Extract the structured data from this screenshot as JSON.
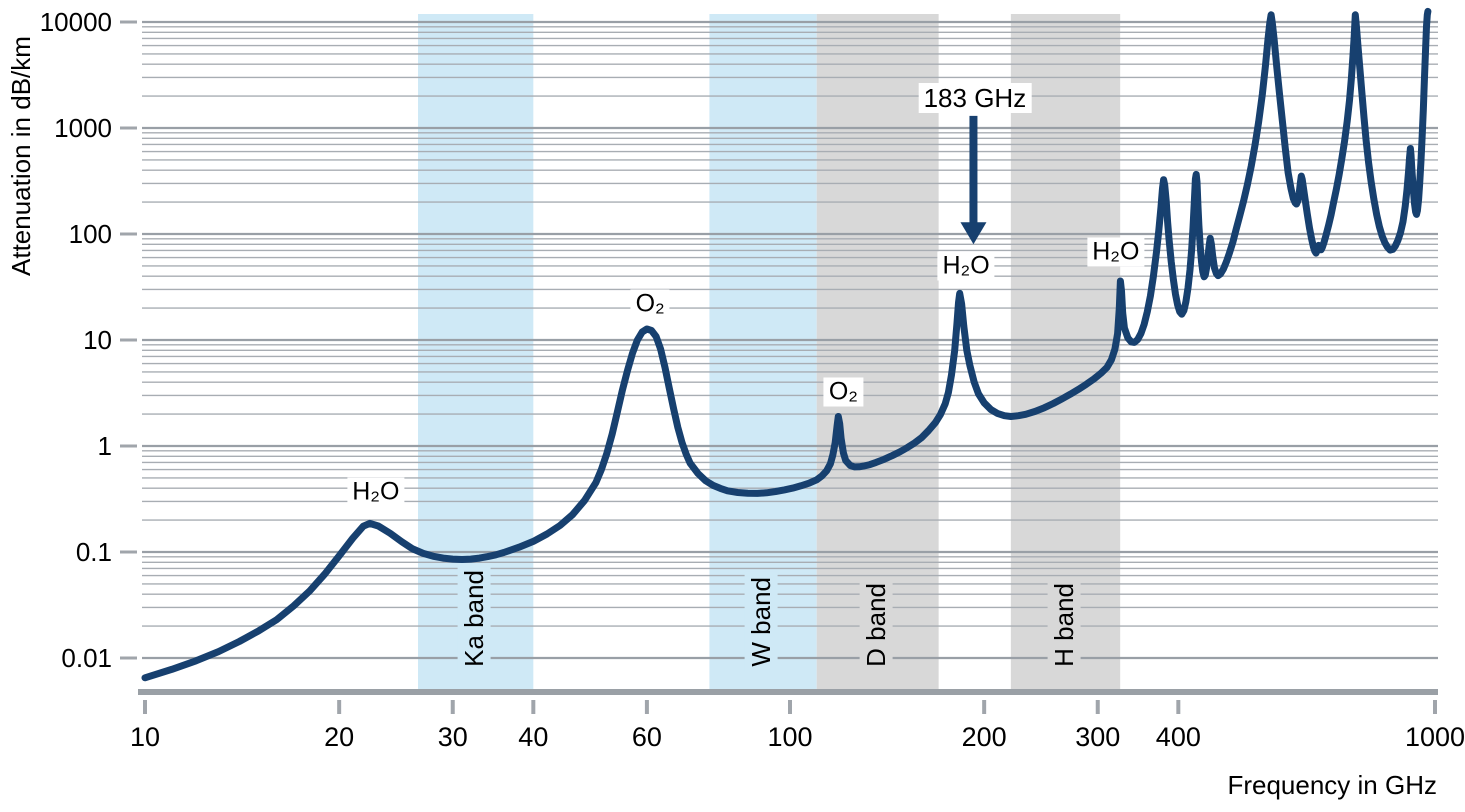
{
  "chart_data": {
    "type": "line",
    "title": "",
    "xlabel": "Frequency in GHz",
    "ylabel": "Attenuation in dB/km",
    "x_scale": "log",
    "y_scale": "log",
    "xlim": [
      10,
      1000
    ],
    "ylim": [
      0.0047,
      12500
    ],
    "x_ticks": [
      10,
      20,
      30,
      40,
      60,
      100,
      200,
      300,
      400,
      1000
    ],
    "y_ticks": [
      10000,
      1000,
      100,
      10,
      1,
      0.1,
      0.01
    ],
    "grid": "horizontal log major and minor lines, no vertical gridlines",
    "legend": "none",
    "colors": {
      "curve": "#17406F",
      "band_blue": "#cfe9f6",
      "band_gray": "#d8d8d8",
      "grid_major": "#999fa6",
      "grid_minor": "#a8adb3",
      "axis_line": "#9aa0a6",
      "tick": "#a0a5ab",
      "text": "#000000"
    },
    "bands": [
      {
        "label": "Ka band",
        "from_ghz": 26.5,
        "to_ghz": 40,
        "color": "#cfe9f6"
      },
      {
        "label": "W band",
        "from_ghz": 75,
        "to_ghz": 110,
        "color": "#cfe9f6"
      },
      {
        "label": "D band",
        "from_ghz": 110,
        "to_ghz": 170,
        "color": "#d8d8d8"
      },
      {
        "label": "H band",
        "from_ghz": 220,
        "to_ghz": 325,
        "color": "#d8d8d8"
      }
    ],
    "annotations": [
      {
        "text": "H₂O",
        "f_ghz": 22.8,
        "a_db_km": 0.37,
        "role": "molecule"
      },
      {
        "text": "O₂",
        "f_ghz": 60.7,
        "a_db_km": 22,
        "role": "molecule"
      },
      {
        "text": "O₂",
        "f_ghz": 121,
        "a_db_km": 3.2,
        "role": "molecule"
      },
      {
        "text": "183 GHz",
        "f_ghz": 193.5,
        "a_db_km": 1900,
        "role": "callout"
      },
      {
        "text": "H₂O",
        "f_ghz": 187.5,
        "a_db_km": 50,
        "role": "molecule"
      },
      {
        "text": "H₂O",
        "f_ghz": 320,
        "a_db_km": 68,
        "role": "molecule"
      }
    ],
    "arrow": {
      "f_ghz": 192.5,
      "from_db_km": 1300,
      "to_db_km": 80
    },
    "series": [
      {
        "points": [
          [
            10,
            0.0065
          ],
          [
            11,
            0.0078
          ],
          [
            12,
            0.0094
          ],
          [
            13,
            0.0115
          ],
          [
            14,
            0.0143
          ],
          [
            15,
            0.018
          ],
          [
            16,
            0.023
          ],
          [
            17,
            0.031
          ],
          [
            18,
            0.043
          ],
          [
            19,
            0.062
          ],
          [
            20,
            0.092
          ],
          [
            21,
            0.135
          ],
          [
            21.8,
            0.175
          ],
          [
            22.3,
            0.186
          ],
          [
            23,
            0.176
          ],
          [
            24,
            0.15
          ],
          [
            25,
            0.125
          ],
          [
            26,
            0.107
          ],
          [
            27,
            0.097
          ],
          [
            28,
            0.091
          ],
          [
            29,
            0.0875
          ],
          [
            30,
            0.0857
          ],
          [
            31,
            0.085
          ],
          [
            32,
            0.0857
          ],
          [
            33,
            0.0875
          ],
          [
            34,
            0.0905
          ],
          [
            35,
            0.094
          ],
          [
            36,
            0.099
          ],
          [
            38,
            0.111
          ],
          [
            40,
            0.126
          ],
          [
            42,
            0.148
          ],
          [
            44,
            0.178
          ],
          [
            46,
            0.225
          ],
          [
            48,
            0.305
          ],
          [
            50,
            0.45
          ],
          [
            51,
            0.6
          ],
          [
            52,
            0.85
          ],
          [
            53,
            1.3
          ],
          [
            54,
            2.1
          ],
          [
            55,
            3.4
          ],
          [
            56,
            5.2
          ],
          [
            57,
            7.5
          ],
          [
            58,
            10
          ],
          [
            59,
            11.9
          ],
          [
            60,
            12.7
          ],
          [
            61,
            12.3
          ],
          [
            62,
            10.8
          ],
          [
            63,
            8.2
          ],
          [
            64,
            5.5
          ],
          [
            65,
            3.5
          ],
          [
            66,
            2.25
          ],
          [
            67,
            1.5
          ],
          [
            68,
            1.08
          ],
          [
            69,
            0.84
          ],
          [
            70,
            0.69
          ],
          [
            72,
            0.55
          ],
          [
            74,
            0.47
          ],
          [
            76,
            0.425
          ],
          [
            78,
            0.398
          ],
          [
            80,
            0.378
          ],
          [
            83,
            0.364
          ],
          [
            86,
            0.358
          ],
          [
            89,
            0.357
          ],
          [
            92,
            0.362
          ],
          [
            95,
            0.372
          ],
          [
            98,
            0.385
          ],
          [
            101,
            0.401
          ],
          [
            104,
            0.421
          ],
          [
            107,
            0.446
          ],
          [
            110,
            0.48
          ],
          [
            112,
            0.52
          ],
          [
            114,
            0.585
          ],
          [
            115.5,
            0.68
          ],
          [
            116.5,
            0.82
          ],
          [
            117.5,
            1.08
          ],
          [
            118.3,
            1.55
          ],
          [
            118.8,
            1.9
          ],
          [
            119.4,
            1.62
          ],
          [
            120,
            1.18
          ],
          [
            121,
            0.86
          ],
          [
            122,
            0.73
          ],
          [
            124,
            0.655
          ],
          [
            126,
            0.635
          ],
          [
            128,
            0.636
          ],
          [
            130,
            0.646
          ],
          [
            133,
            0.668
          ],
          [
            136,
            0.7
          ],
          [
            140,
            0.75
          ],
          [
            144,
            0.81
          ],
          [
            148,
            0.88
          ],
          [
            152,
            0.965
          ],
          [
            156,
            1.07
          ],
          [
            160,
            1.2
          ],
          [
            164,
            1.4
          ],
          [
            168,
            1.66
          ],
          [
            171,
            1.97
          ],
          [
            174,
            2.5
          ],
          [
            176,
            3.2
          ],
          [
            178,
            4.7
          ],
          [
            180,
            8
          ],
          [
            181.5,
            14.5
          ],
          [
            182.5,
            22.5
          ],
          [
            183.3,
            27.5
          ],
          [
            184.5,
            22
          ],
          [
            186,
            13.5
          ],
          [
            188,
            8
          ],
          [
            190,
            5.8
          ],
          [
            193,
            4
          ],
          [
            196,
            3.1
          ],
          [
            200,
            2.55
          ],
          [
            205,
            2.2
          ],
          [
            210,
            2.02
          ],
          [
            215,
            1.93
          ],
          [
            220,
            1.9
          ],
          [
            226,
            1.93
          ],
          [
            232,
            1.99
          ],
          [
            240,
            2.12
          ],
          [
            248,
            2.3
          ],
          [
            256,
            2.52
          ],
          [
            264,
            2.78
          ],
          [
            272,
            3.08
          ],
          [
            280,
            3.42
          ],
          [
            288,
            3.82
          ],
          [
            296,
            4.3
          ],
          [
            304,
            4.9
          ],
          [
            310,
            5.5
          ],
          [
            315,
            6.5
          ],
          [
            319,
            8.2
          ],
          [
            322,
            11.5
          ],
          [
            324,
            20
          ],
          [
            325.3,
            36
          ],
          [
            326.5,
            29
          ],
          [
            328,
            18
          ],
          [
            330,
            13
          ],
          [
            334,
            10.5
          ],
          [
            338,
            9.6
          ],
          [
            342,
            9.5
          ],
          [
            346,
            10.1
          ],
          [
            350,
            11.5
          ],
          [
            354,
            14
          ],
          [
            358,
            18.5
          ],
          [
            362,
            26
          ],
          [
            366,
            40
          ],
          [
            370,
            68
          ],
          [
            373,
            108
          ],
          [
            376,
            180
          ],
          [
            378,
            270
          ],
          [
            379.5,
            325
          ],
          [
            381,
            290
          ],
          [
            383,
            205
          ],
          [
            385,
            130
          ],
          [
            387,
            88
          ],
          [
            390,
            55
          ],
          [
            393,
            37
          ],
          [
            396,
            27
          ],
          [
            399,
            21.5
          ],
          [
            402,
            18.5
          ],
          [
            405,
            17.5
          ],
          [
            408,
            19
          ],
          [
            411,
            23
          ],
          [
            414,
            31
          ],
          [
            417,
            46
          ],
          [
            419.5,
            72
          ],
          [
            421.5,
            115
          ],
          [
            423.5,
            200
          ],
          [
            425.2,
            330
          ],
          [
            426.3,
            365
          ],
          [
            427.5,
            310
          ],
          [
            429,
            190
          ],
          [
            430.5,
            120
          ],
          [
            432.5,
            77
          ],
          [
            434.5,
            55
          ],
          [
            436.5,
            44
          ],
          [
            438.5,
            39.5
          ],
          [
            440.5,
            41
          ],
          [
            442.5,
            48
          ],
          [
            444.5,
            60
          ],
          [
            446.5,
            77
          ],
          [
            448.2,
            91
          ],
          [
            450,
            81
          ],
          [
            452,
            63
          ],
          [
            455,
            48
          ],
          [
            458,
            42.5
          ],
          [
            461,
            40.5
          ],
          [
            465,
            42
          ],
          [
            470,
            47
          ],
          [
            475,
            55
          ],
          [
            480,
            66
          ],
          [
            486,
            84
          ],
          [
            492,
            112
          ],
          [
            498,
            148
          ],
          [
            505,
            205
          ],
          [
            512,
            295
          ],
          [
            519,
            440
          ],
          [
            526,
            690
          ],
          [
            533,
            1150
          ],
          [
            540,
            2100
          ],
          [
            546,
            3900
          ],
          [
            551,
            6900
          ],
          [
            554.5,
            9800
          ],
          [
            557,
            11700
          ],
          [
            559.5,
            9800
          ],
          [
            563,
            6900
          ],
          [
            568,
            3900
          ],
          [
            574,
            2100
          ],
          [
            580,
            1160
          ],
          [
            586,
            640
          ],
          [
            592,
            380
          ],
          [
            598,
            268
          ],
          [
            603,
            216
          ],
          [
            607,
            197
          ],
          [
            610,
            192
          ],
          [
            613,
            206
          ],
          [
            616,
            247
          ],
          [
            618.5,
            305
          ],
          [
            620.5,
            352
          ],
          [
            622.5,
            328
          ],
          [
            625,
            278
          ],
          [
            629,
            213
          ],
          [
            634,
            154
          ],
          [
            639,
            114
          ],
          [
            644,
            89
          ],
          [
            648,
            75
          ],
          [
            651,
            69
          ],
          [
            654,
            66
          ],
          [
            657,
            70
          ],
          [
            660,
            78
          ],
          [
            663,
            74
          ],
          [
            666,
            71
          ],
          [
            669,
            75
          ],
          [
            673,
            84
          ],
          [
            678,
            98
          ],
          [
            684,
            121
          ],
          [
            690,
            152
          ],
          [
            696,
            197
          ],
          [
            703,
            263
          ],
          [
            710,
            362
          ],
          [
            717,
            512
          ],
          [
            724,
            745
          ],
          [
            731,
            1160
          ],
          [
            737,
            1820
          ],
          [
            742,
            2950
          ],
          [
            746,
            4700
          ],
          [
            749.5,
            7300
          ],
          [
            752.4,
            11700
          ],
          [
            755.5,
            8900
          ],
          [
            759,
            6200
          ],
          [
            764,
            3900
          ],
          [
            770,
            2200
          ],
          [
            776,
            1260
          ],
          [
            782,
            765
          ],
          [
            789,
            470
          ],
          [
            796,
            312
          ],
          [
            804,
            212
          ],
          [
            812,
            152
          ],
          [
            820,
            117
          ],
          [
            828,
            96
          ],
          [
            836,
            83
          ],
          [
            844,
            75
          ],
          [
            852,
            70.5
          ],
          [
            860,
            71.5
          ],
          [
            868,
            77
          ],
          [
            876,
            87
          ],
          [
            884,
            103
          ],
          [
            892,
            131
          ],
          [
            899,
            182
          ],
          [
            905,
            262
          ],
          [
            910,
            392
          ],
          [
            913,
            520
          ],
          [
            916,
            640
          ],
          [
            918,
            560
          ],
          [
            921,
            400
          ],
          [
            925,
            272
          ],
          [
            929,
            197
          ],
          [
            933,
            162
          ],
          [
            936,
            153
          ],
          [
            939,
            166
          ],
          [
            943,
            212
          ],
          [
            947,
            302
          ],
          [
            951,
            475
          ],
          [
            955,
            810
          ],
          [
            959,
            1470
          ],
          [
            963,
            2850
          ],
          [
            967,
            5600
          ],
          [
            970,
            9100
          ],
          [
            972.8,
            11700
          ],
          [
            975,
            12600
          ]
        ]
      }
    ]
  }
}
